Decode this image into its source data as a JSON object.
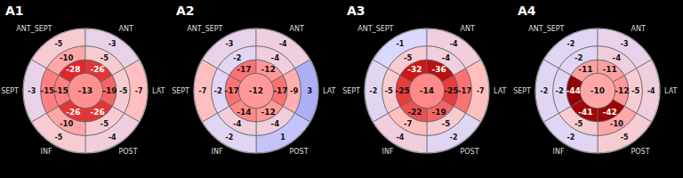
{
  "chart_data": [
    {
      "type": "bullseye",
      "title": "A1",
      "categories": [
        "ANT_SEPT",
        "ANT",
        "LAT",
        "POST",
        "INF",
        "SEPT"
      ],
      "inner": [
        -28,
        -26,
        -19,
        -26,
        -26,
        -15
      ],
      "mid": [
        -10,
        -5,
        -5,
        -5,
        -10,
        -15
      ],
      "outer": [
        -5,
        -3,
        -7,
        -4,
        -5,
        -3
      ],
      "apex": -13,
      "color_range": [
        -45,
        5
      ],
      "data_labels": true
    },
    {
      "type": "bullseye",
      "title": "A2",
      "categories": [
        "ANT_SEPT",
        "ANT",
        "LAT",
        "POST",
        "INF",
        "SEPT"
      ],
      "inner": [
        -17,
        -12,
        -17,
        -12,
        -14,
        -17
      ],
      "mid": [
        -2,
        -4,
        -9,
        -4,
        -4,
        -2
      ],
      "outer": [
        -3,
        -4,
        3,
        1,
        -2,
        -7
      ],
      "apex": -12,
      "color_range": [
        -45,
        5
      ],
      "data_labels": true
    },
    {
      "type": "bullseye",
      "title": "A3",
      "categories": [
        "ANT_SEPT",
        "ANT",
        "LAT",
        "POST",
        "INF",
        "SEPT"
      ],
      "inner": [
        -32,
        -36,
        -25,
        -19,
        -22,
        -25
      ],
      "mid": [
        -5,
        -4,
        -17,
        -5,
        -7,
        -5
      ],
      "outer": [
        -1,
        -4,
        -7,
        -2,
        -4,
        -2
      ],
      "apex": -14,
      "color_range": [
        -45,
        5
      ],
      "data_labels": true
    },
    {
      "type": "bullseye",
      "title": "A4",
      "categories": [
        "ANT_SEPT",
        "ANT",
        "LAT",
        "POST",
        "INF",
        "SEPT"
      ],
      "inner": [
        -11,
        -11,
        -12,
        -42,
        -41,
        -44
      ],
      "mid": [
        -2,
        -4,
        -5,
        -10,
        -5,
        -2
      ],
      "outer": [
        -2,
        -3,
        -4,
        -5,
        -2,
        -2
      ],
      "apex": -10,
      "color_range": [
        -45,
        5
      ],
      "data_labels": true
    }
  ]
}
